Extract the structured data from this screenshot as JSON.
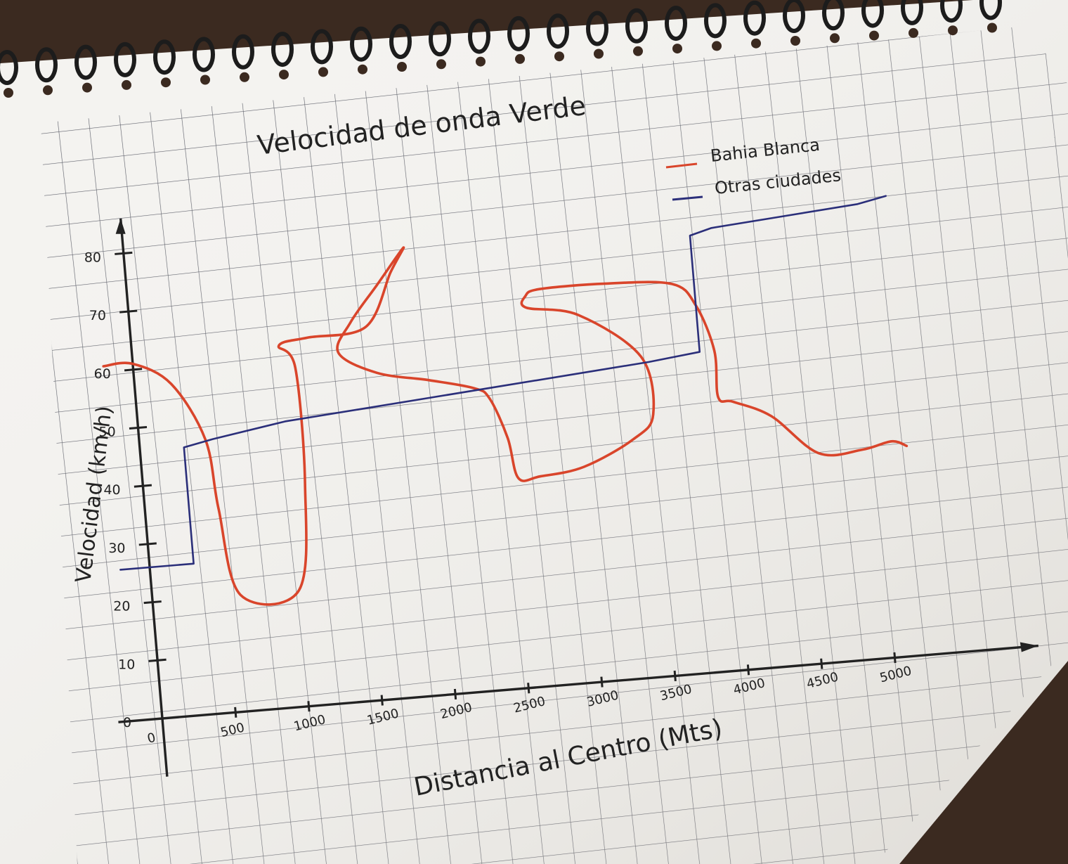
{
  "chart_data": {
    "type": "line",
    "title": "Velocidad de onda Verde",
    "xlabel": "Distancia al Centro (Mts)",
    "ylabel": "Velocidad (km/h)",
    "x_ticks": [
      "0",
      "500",
      "1000",
      "1500",
      "2000",
      "2500",
      "3000",
      "3500",
      "4000",
      "4500",
      "5000"
    ],
    "y_ticks": [
      "0",
      "10",
      "20",
      "30",
      "40",
      "50",
      "60",
      "70",
      "80"
    ],
    "xlim": [
      0,
      5000
    ],
    "ylim": [
      0,
      90
    ],
    "grid": true,
    "legend_position": "top-right",
    "series": [
      {
        "name": "Bahia Blanca",
        "color": "#d9452b",
        "x": [
          -200,
          0,
          250,
          450,
          500,
          600,
          1000,
          1100,
          1100,
          1000,
          1200,
          1600,
          1800,
          1900,
          1700,
          1500,
          1400,
          1650,
          2000,
          2300,
          2400,
          2500,
          2550,
          2700,
          3000,
          3350,
          3500,
          3450,
          3050,
          2700,
          2700,
          2800,
          3250,
          3700,
          3850,
          3950,
          3950,
          4050,
          4300,
          4600,
          4900,
          5100,
          5200
        ],
        "y": [
          61,
          61,
          57,
          47,
          35,
          20,
          20,
          38,
          58,
          62,
          63,
          64,
          73,
          77,
          71,
          65,
          60,
          56,
          54,
          52,
          50,
          43,
          36,
          36,
          37,
          41,
          45,
          55,
          63,
          65,
          67,
          68,
          68,
          67,
          63,
          55,
          47,
          46,
          43,
          36,
          36,
          37,
          36
        ]
      },
      {
        "name": "Otras ciudades",
        "color": "#2b2f7a",
        "x": [
          -200,
          300,
          300,
          500,
          1000,
          1500,
          2000,
          2500,
          3000,
          3500,
          3850,
          3850,
          4000,
          4500,
          5000,
          5200
        ],
        "y": [
          26,
          26,
          46,
          47,
          49,
          50,
          51,
          52,
          53,
          54,
          55,
          75,
          76,
          77,
          78,
          79
        ]
      }
    ]
  },
  "colors": {
    "paper": "#f4f3f0",
    "grid": "#5a5c66",
    "ink": "#222222",
    "wire": "#1c1c1c"
  }
}
